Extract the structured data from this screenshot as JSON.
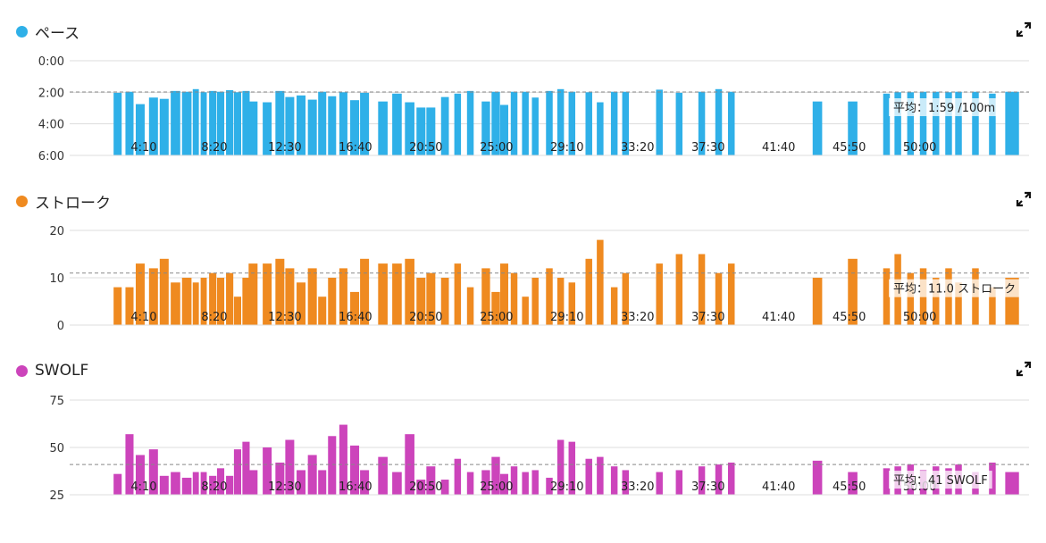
{
  "icons": {
    "expand": "expand-icon"
  },
  "chart_data": [
    {
      "id": "pace",
      "type": "bar",
      "title": "ペース",
      "color": "#2fb0e8",
      "reversed_y": true,
      "ylim": [
        0,
        360
      ],
      "ytick_values": [
        0,
        120,
        240,
        360
      ],
      "ytick_labels": [
        "0:00",
        "2:00",
        "4:00",
        "6:00"
      ],
      "xlim": [
        0,
        3400
      ],
      "xtick_values": [
        250,
        500,
        750,
        1000,
        1250,
        1500,
        1750,
        2000,
        2250,
        2500,
        2750,
        3000
      ],
      "xtick_labels": [
        "4:10",
        "8:20",
        "12:30",
        "16:40",
        "20:50",
        "25:00",
        "29:10",
        "33:20",
        "37:30",
        "41:40",
        "45:50",
        "50:00"
      ],
      "grid": true,
      "average": {
        "value": 119,
        "label": "平均：1:59 /100m"
      },
      "x": [
        170,
        212,
        250,
        297,
        335,
        375,
        415,
        447,
        475,
        507,
        535,
        567,
        595,
        625,
        650,
        700,
        745,
        780,
        820,
        860,
        895,
        930,
        970,
        1010,
        1045,
        1110,
        1160,
        1205,
        1245,
        1280,
        1330,
        1375,
        1420,
        1475,
        1510,
        1540,
        1575,
        1615,
        1650,
        1700,
        1740,
        1780,
        1840,
        1880,
        1930,
        1970,
        2090,
        2160,
        2240,
        2300,
        2345,
        2650,
        2775,
        2895,
        2935,
        2980,
        3025,
        3070,
        3115,
        3150,
        3210,
        3270,
        3340
      ],
      "values": [
        122,
        118,
        165,
        140,
        145,
        115,
        118,
        108,
        120,
        115,
        118,
        112,
        120,
        115,
        155,
        158,
        115,
        138,
        132,
        148,
        118,
        135,
        120,
        150,
        122,
        155,
        125,
        158,
        178,
        178,
        138,
        125,
        115,
        155,
        118,
        168,
        118,
        118,
        140,
        115,
        108,
        118,
        120,
        158,
        118,
        118,
        110,
        122,
        118,
        108,
        118,
        155,
        155,
        125,
        120,
        120,
        118,
        118,
        120,
        118,
        118,
        125,
        118
      ],
      "widths": [
        35,
        35,
        38,
        38,
        38,
        40,
        40,
        28,
        28,
        32,
        32,
        32,
        32,
        32,
        38,
        38,
        38,
        38,
        38,
        38,
        35,
        35,
        35,
        38,
        38,
        40,
        40,
        40,
        38,
        38,
        34,
        30,
        30,
        36,
        36,
        35,
        30,
        30,
        30,
        30,
        30,
        30,
        30,
        30,
        30,
        30,
        30,
        30,
        30,
        30,
        30,
        40,
        40,
        30,
        30,
        30,
        30,
        30,
        30,
        30,
        30,
        30,
        55
      ]
    },
    {
      "id": "stroke",
      "type": "bar",
      "title": "ストローク",
      "color": "#ef8a20",
      "reversed_y": false,
      "ylim": [
        0,
        20
      ],
      "ytick_values": [
        0,
        10,
        20
      ],
      "ytick_labels": [
        "0",
        "10",
        "20"
      ],
      "xlim": [
        0,
        3400
      ],
      "xtick_values": [
        250,
        500,
        750,
        1000,
        1250,
        1500,
        1750,
        2000,
        2250,
        2500,
        2750,
        3000
      ],
      "xtick_labels": [
        "4:10",
        "8:20",
        "12:30",
        "16:40",
        "20:50",
        "25:00",
        "29:10",
        "33:20",
        "37:30",
        "41:40",
        "45:50",
        "50:00"
      ],
      "grid": true,
      "average": {
        "value": 11,
        "label": "平均：11.0 ストローク"
      },
      "x": [
        170,
        212,
        250,
        297,
        335,
        375,
        415,
        447,
        475,
        507,
        535,
        567,
        595,
        625,
        650,
        700,
        745,
        780,
        820,
        860,
        895,
        930,
        970,
        1010,
        1045,
        1110,
        1160,
        1205,
        1245,
        1280,
        1330,
        1375,
        1420,
        1475,
        1510,
        1540,
        1575,
        1615,
        1650,
        1700,
        1740,
        1780,
        1840,
        1880,
        1930,
        1970,
        2090,
        2160,
        2240,
        2300,
        2345,
        2650,
        2775,
        2895,
        2935,
        2980,
        3025,
        3070,
        3115,
        3150,
        3210,
        3270,
        3340
      ],
      "values": [
        8,
        8,
        13,
        12,
        14,
        9,
        10,
        9,
        10,
        11,
        10,
        11,
        6,
        10,
        13,
        13,
        14,
        12,
        9,
        12,
        6,
        10,
        12,
        7,
        14,
        13,
        13,
        14,
        10,
        11,
        10,
        13,
        8,
        12,
        7,
        13,
        11,
        6,
        10,
        12,
        10,
        9,
        14,
        18,
        8,
        11,
        13,
        15,
        15,
        11,
        13,
        10,
        14,
        12,
        15,
        11,
        12,
        10,
        12,
        9,
        12,
        8,
        10
      ],
      "widths": [
        35,
        35,
        38,
        38,
        38,
        40,
        40,
        28,
        28,
        32,
        32,
        32,
        32,
        32,
        38,
        38,
        38,
        38,
        38,
        38,
        35,
        35,
        35,
        38,
        38,
        40,
        40,
        40,
        38,
        38,
        34,
        30,
        30,
        36,
        36,
        35,
        30,
        30,
        30,
        30,
        30,
        30,
        30,
        30,
        30,
        30,
        30,
        30,
        30,
        30,
        30,
        40,
        40,
        30,
        30,
        30,
        30,
        30,
        30,
        30,
        30,
        30,
        55
      ]
    },
    {
      "id": "swolf",
      "type": "bar",
      "title": "SWOLF",
      "color": "#cc44bb",
      "reversed_y": false,
      "ylim": [
        25,
        75
      ],
      "ytick_values": [
        25,
        50,
        75
      ],
      "ytick_labels": [
        "25",
        "50",
        "75"
      ],
      "xlim": [
        0,
        3400
      ],
      "xtick_values": [
        250,
        500,
        750,
        1000,
        1250,
        1500,
        1750,
        2000,
        2250,
        2500,
        2750,
        3000
      ],
      "xtick_labels": [
        "4:10",
        "8:20",
        "12:30",
        "16:40",
        "20:50",
        "25:00",
        "29:10",
        "33:20",
        "37:30",
        "41:40",
        "45:50",
        "50:00"
      ],
      "grid": true,
      "average": {
        "value": 41,
        "label": "平均：41 SWOLF"
      },
      "x": [
        170,
        212,
        250,
        297,
        335,
        375,
        415,
        447,
        475,
        507,
        535,
        567,
        595,
        625,
        650,
        700,
        745,
        780,
        820,
        860,
        895,
        930,
        970,
        1010,
        1045,
        1110,
        1160,
        1205,
        1245,
        1280,
        1330,
        1375,
        1420,
        1475,
        1510,
        1540,
        1575,
        1615,
        1650,
        1700,
        1740,
        1780,
        1840,
        1880,
        1930,
        1970,
        2090,
        2160,
        2240,
        2300,
        2345,
        2650,
        2775,
        2895,
        2935,
        2980,
        3025,
        3070,
        3115,
        3150,
        3210,
        3270,
        3340
      ],
      "values": [
        36,
        57,
        46,
        49,
        35,
        37,
        34,
        37,
        37,
        35,
        39,
        35,
        49,
        53,
        38,
        50,
        42,
        54,
        38,
        46,
        38,
        56,
        62,
        51,
        38,
        45,
        37,
        57,
        33,
        40,
        33,
        44,
        37,
        38,
        45,
        36,
        40,
        37,
        38,
        34,
        54,
        53,
        44,
        45,
        40,
        38,
        37,
        38,
        40,
        41,
        42,
        43,
        37,
        39,
        40,
        41,
        38,
        40,
        39,
        41,
        37,
        42,
        37
      ],
      "widths": [
        35,
        35,
        38,
        38,
        38,
        40,
        40,
        28,
        28,
        32,
        32,
        32,
        32,
        32,
        38,
        38,
        38,
        38,
        38,
        38,
        35,
        35,
        35,
        38,
        38,
        40,
        40,
        40,
        38,
        38,
        34,
        30,
        30,
        36,
        36,
        35,
        30,
        30,
        30,
        30,
        30,
        30,
        30,
        30,
        30,
        30,
        30,
        30,
        30,
        30,
        30,
        40,
        40,
        30,
        30,
        30,
        30,
        30,
        30,
        30,
        30,
        30,
        55
      ]
    }
  ]
}
